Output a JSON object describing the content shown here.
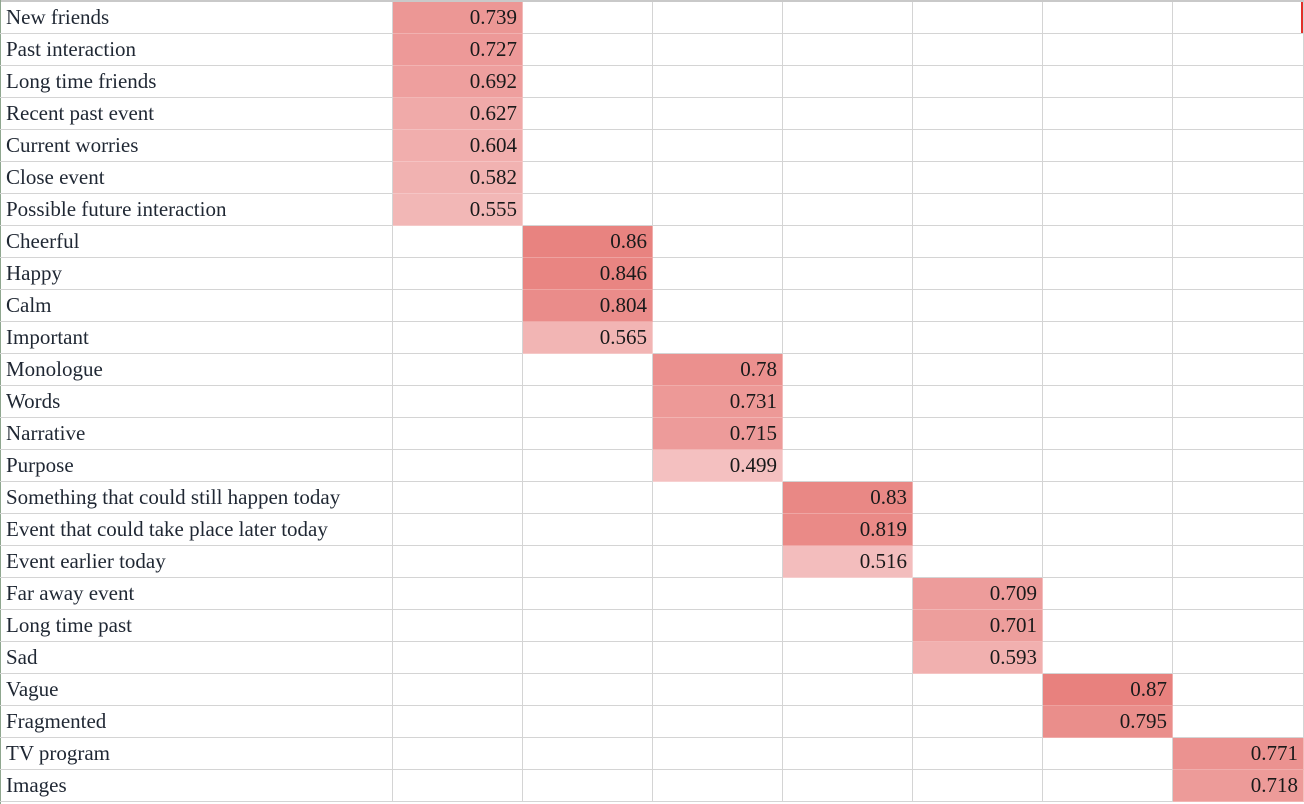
{
  "table": {
    "rows": [
      {
        "label": "New friends",
        "col": 0,
        "value": "0.739",
        "shade": 0.739
      },
      {
        "label": "Past interaction",
        "col": 0,
        "value": "0.727",
        "shade": 0.727
      },
      {
        "label": "Long time friends",
        "col": 0,
        "value": "0.692",
        "shade": 0.692
      },
      {
        "label": "Recent past event",
        "col": 0,
        "value": "0.627",
        "shade": 0.627
      },
      {
        "label": "Current worries",
        "col": 0,
        "value": "0.604",
        "shade": 0.604
      },
      {
        "label": "Close event",
        "col": 0,
        "value": "0.582",
        "shade": 0.582
      },
      {
        "label": "Possible future interaction",
        "col": 0,
        "value": "0.555",
        "shade": 0.555
      },
      {
        "label": "Cheerful",
        "col": 1,
        "value": "0.86",
        "shade": 0.86
      },
      {
        "label": "Happy",
        "col": 1,
        "value": "0.846",
        "shade": 0.846
      },
      {
        "label": "Calm",
        "col": 1,
        "value": "0.804",
        "shade": 0.804
      },
      {
        "label": "Important",
        "col": 1,
        "value": "0.565",
        "shade": 0.565
      },
      {
        "label": "Monologue",
        "col": 2,
        "value": "0.78",
        "shade": 0.78
      },
      {
        "label": "Words",
        "col": 2,
        "value": "0.731",
        "shade": 0.731
      },
      {
        "label": "Narrative",
        "col": 2,
        "value": "0.715",
        "shade": 0.715
      },
      {
        "label": "Purpose",
        "col": 2,
        "value": "0.499",
        "shade": 0.499
      },
      {
        "label": "Something that could still happen today",
        "col": 3,
        "value": "0.83",
        "shade": 0.83
      },
      {
        "label": "Event that could take place later today",
        "col": 3,
        "value": "0.819",
        "shade": 0.819
      },
      {
        "label": "Event earlier today",
        "col": 3,
        "value": "0.516",
        "shade": 0.516
      },
      {
        "label": "Far away event",
        "col": 4,
        "value": "0.709",
        "shade": 0.709
      },
      {
        "label": "Long time past",
        "col": 4,
        "value": "0.701",
        "shade": 0.701
      },
      {
        "label": "Sad",
        "col": 4,
        "value": "0.593",
        "shade": 0.593
      },
      {
        "label": "Vague",
        "col": 5,
        "value": "0.87",
        "shade": 0.87
      },
      {
        "label": "Fragmented",
        "col": 5,
        "value": "0.795",
        "shade": 0.795
      },
      {
        "label": "TV program",
        "col": 6,
        "value": "0.771",
        "shade": 0.771
      },
      {
        "label": "Images",
        "col": 6,
        "value": "0.718",
        "shade": 0.718
      }
    ],
    "colors": {
      "high": "#e8817e",
      "low": "#f4c0c0",
      "grid": "#d4d4d4"
    }
  }
}
